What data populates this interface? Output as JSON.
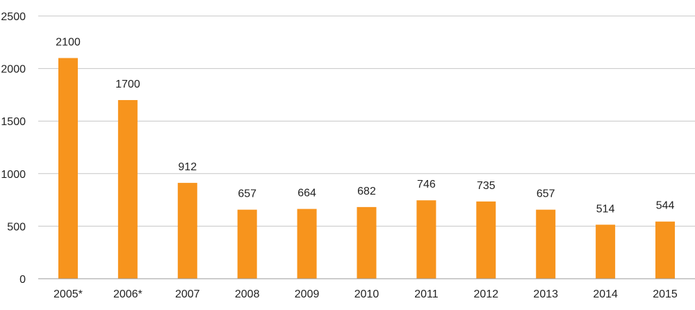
{
  "chart_data": {
    "type": "bar",
    "title": "",
    "xlabel": "",
    "ylabel": "",
    "categories": [
      "2005*",
      "2006*",
      "2007",
      "2008",
      "2009",
      "2010",
      "2011",
      "2012",
      "2013",
      "2014",
      "2015"
    ],
    "values": [
      2100,
      1700,
      912,
      657,
      664,
      682,
      746,
      735,
      657,
      514,
      544
    ],
    "data_labels": [
      "2100",
      "1700",
      "912",
      "657",
      "664",
      "682",
      "746",
      "735",
      "657",
      "514",
      "544"
    ],
    "ylim": [
      0,
      2500
    ],
    "yticks": [
      0,
      500,
      1000,
      1500,
      2000,
      2500
    ],
    "ytick_labels": [
      "0",
      "500",
      "1000",
      "1500",
      "2000",
      "2500"
    ],
    "grid": true,
    "legend": "none",
    "bar_color": "#f7941d"
  }
}
